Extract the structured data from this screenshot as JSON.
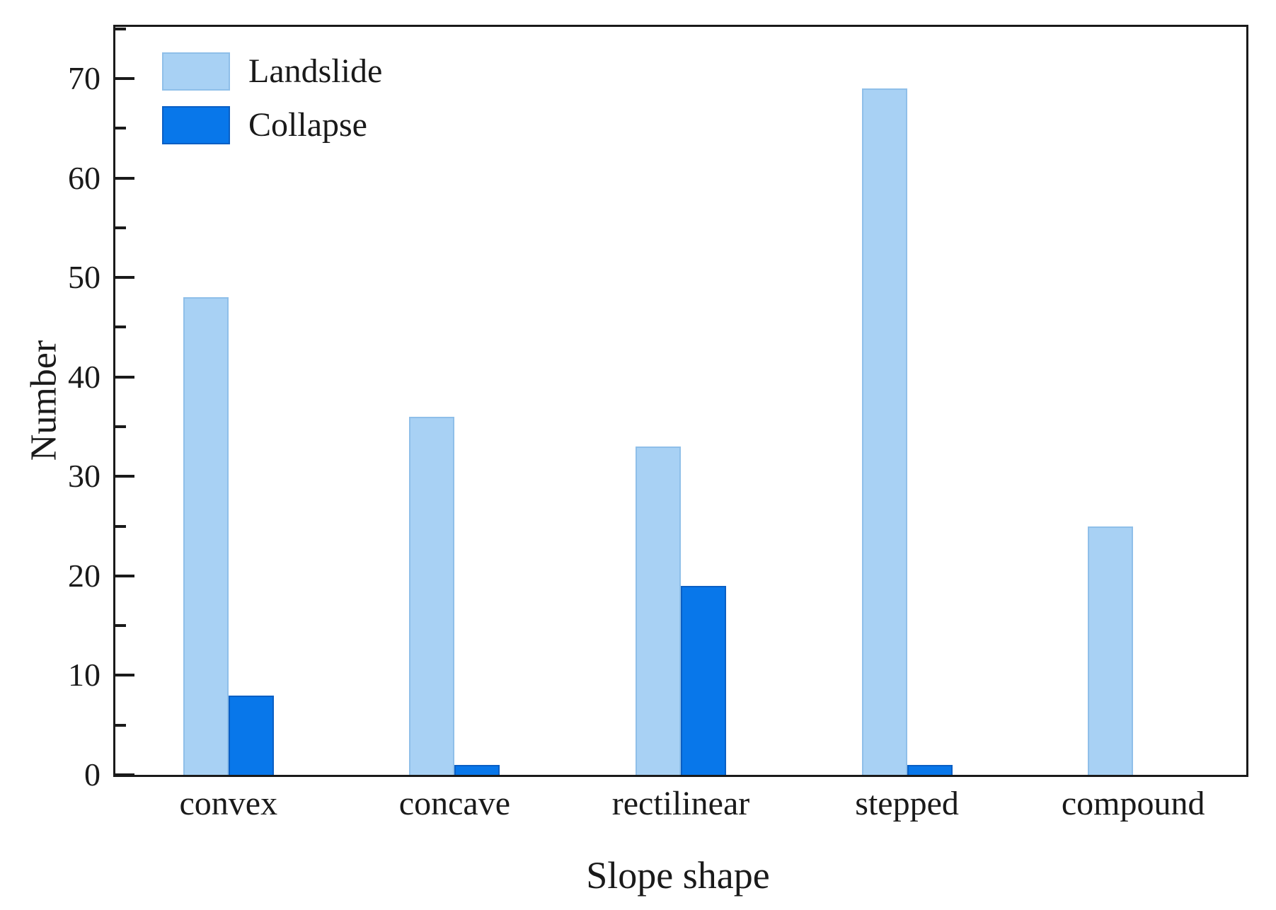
{
  "chart_data": {
    "type": "bar",
    "title": "",
    "xlabel": "Slope shape",
    "ylabel": "Number",
    "categories": [
      "convex",
      "concave",
      "rectilinear",
      "stepped",
      "compound"
    ],
    "series": [
      {
        "name": "Landslide",
        "color": "#A8D1F4",
        "edge_color": "#8FBFE9",
        "values": [
          48,
          36,
          33,
          69,
          25
        ]
      },
      {
        "name": "Collapse",
        "color": "#0877EA",
        "edge_color": "#0A5FC4",
        "values": [
          8,
          1,
          19,
          1,
          0
        ]
      }
    ],
    "ylim": [
      0,
      75.2
    ],
    "yticks": {
      "major": 10,
      "minor": 5,
      "label_max": 70
    },
    "legend_position": "top-left",
    "grid": false,
    "frame_color": "#1a1a1a",
    "background": "#ffffff"
  }
}
